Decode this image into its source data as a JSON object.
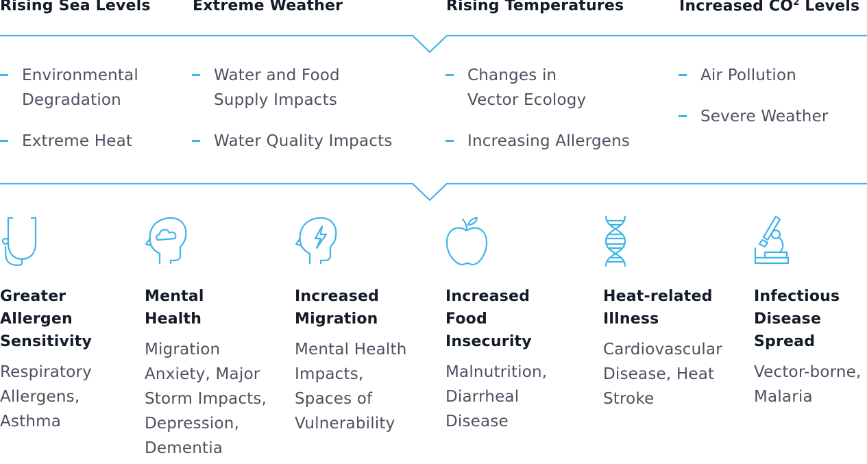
{
  "headers": [
    {
      "main": "Rising Sea Levels",
      "sup": ""
    },
    {
      "main": "Extreme Weather",
      "sup": ""
    },
    {
      "main": "Rising Temperatures",
      "sup": ""
    },
    {
      "main": "Increased CO",
      "sup": "2",
      "after": " Levels"
    }
  ],
  "bullets": [
    [
      "Environmental\nDegradation",
      "Extreme Heat"
    ],
    [
      "Water and Food\nSupply Impacts",
      "Water Quality Impacts"
    ],
    [
      "Changes in\nVector Ecology",
      "Increasing Allergens"
    ],
    [
      "Air Pollution",
      "Severe Weather"
    ]
  ],
  "impacts": [
    {
      "icon": "stethoscope-icon",
      "title": "Greater\nAllergen\nSensitivity",
      "desc": "Respiratory\nAllergens,\nAsthma"
    },
    {
      "icon": "head-cloud-icon",
      "title": "Mental\nHealth",
      "desc": "Migration\nAnxiety, Major\nStorm Impacts,\nDepression,\nDementia"
    },
    {
      "icon": "head-lightning-icon",
      "title": "Increased\nMigration",
      "desc": "Mental Health\nImpacts,\nSpaces of\nVulnerability"
    },
    {
      "icon": "apple-icon",
      "title": "Increased\nFood\nInsecurity",
      "desc": "Malnutrition,\nDiarrheal\nDisease"
    },
    {
      "icon": "dna-icon",
      "title": "Heat-related\nIllness",
      "desc": "Cardiovascular\nDisease, Heat\nStroke"
    },
    {
      "icon": "microscope-icon",
      "title": "Infectious\nDisease\nSpread",
      "desc": "Vector-borne,\nMalaria"
    }
  ],
  "colors": {
    "accent": "#3db4e6",
    "heading": "#131b28",
    "body": "#4a5260"
  }
}
